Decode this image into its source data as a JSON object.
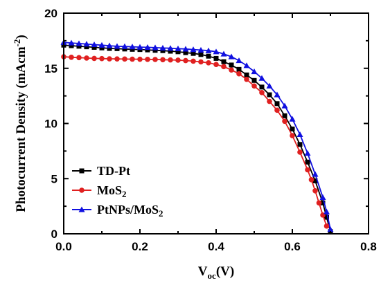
{
  "chart_data": {
    "type": "line",
    "xlabel": {
      "main": "V",
      "sub": "oc",
      "tail": "(V)"
    },
    "ylabel": {
      "main": "Photocurrent Density (mAcm",
      "sup": "-2",
      "tail": ")"
    },
    "xlim": [
      0,
      0.8
    ],
    "ylim": [
      0,
      20
    ],
    "xticks": [
      "0.0",
      "0.2",
      "0.4",
      "0.6",
      "0.8"
    ],
    "yticks": [
      "0",
      "5",
      "10",
      "15",
      "20"
    ],
    "xtick_values": [
      0,
      0.2,
      0.4,
      0.6,
      0.8
    ],
    "ytick_values": [
      0,
      5,
      10,
      15,
      20
    ],
    "grid": false,
    "legend": {
      "placement": "bottom-left"
    },
    "series": [
      {
        "name": "TD-Pt",
        "legend": {
          "main": "TD-Pt"
        },
        "color": "#000000",
        "marker": "square",
        "points": [
          [
            0.0,
            17.1
          ],
          [
            0.02,
            17.05
          ],
          [
            0.04,
            17.0
          ],
          [
            0.06,
            16.95
          ],
          [
            0.08,
            16.9
          ],
          [
            0.1,
            16.85
          ],
          [
            0.12,
            16.8
          ],
          [
            0.14,
            16.78
          ],
          [
            0.16,
            16.75
          ],
          [
            0.18,
            16.72
          ],
          [
            0.2,
            16.7
          ],
          [
            0.22,
            16.67
          ],
          [
            0.24,
            16.63
          ],
          [
            0.26,
            16.6
          ],
          [
            0.28,
            16.55
          ],
          [
            0.3,
            16.5
          ],
          [
            0.32,
            16.42
          ],
          [
            0.34,
            16.35
          ],
          [
            0.36,
            16.25
          ],
          [
            0.38,
            16.1
          ],
          [
            0.4,
            15.9
          ],
          [
            0.42,
            15.6
          ],
          [
            0.44,
            15.3
          ],
          [
            0.46,
            14.9
          ],
          [
            0.48,
            14.4
          ],
          [
            0.5,
            13.9
          ],
          [
            0.52,
            13.3
          ],
          [
            0.54,
            12.6
          ],
          [
            0.56,
            11.8
          ],
          [
            0.58,
            10.7
          ],
          [
            0.6,
            9.5
          ],
          [
            0.62,
            8.1
          ],
          [
            0.64,
            6.5
          ],
          [
            0.66,
            4.8
          ],
          [
            0.68,
            2.8
          ],
          [
            0.69,
            1.5
          ],
          [
            0.7,
            0.2
          ]
        ]
      },
      {
        "name": "MoS2",
        "legend": {
          "main": "MoS",
          "sub": "2"
        },
        "color": "#e02020",
        "marker": "circle",
        "points": [
          [
            0.0,
            16.05
          ],
          [
            0.02,
            16.0
          ],
          [
            0.04,
            15.97
          ],
          [
            0.06,
            15.93
          ],
          [
            0.08,
            15.9
          ],
          [
            0.1,
            15.88
          ],
          [
            0.12,
            15.86
          ],
          [
            0.14,
            15.85
          ],
          [
            0.16,
            15.84
          ],
          [
            0.18,
            15.83
          ],
          [
            0.2,
            15.82
          ],
          [
            0.22,
            15.81
          ],
          [
            0.24,
            15.8
          ],
          [
            0.26,
            15.78
          ],
          [
            0.28,
            15.76
          ],
          [
            0.3,
            15.74
          ],
          [
            0.32,
            15.7
          ],
          [
            0.34,
            15.65
          ],
          [
            0.36,
            15.58
          ],
          [
            0.38,
            15.5
          ],
          [
            0.4,
            15.35
          ],
          [
            0.42,
            15.15
          ],
          [
            0.44,
            14.85
          ],
          [
            0.46,
            14.5
          ],
          [
            0.48,
            14.0
          ],
          [
            0.5,
            13.4
          ],
          [
            0.52,
            12.8
          ],
          [
            0.54,
            12.0
          ],
          [
            0.56,
            11.2
          ],
          [
            0.58,
            10.2
          ],
          [
            0.6,
            8.9
          ],
          [
            0.62,
            7.4
          ],
          [
            0.64,
            5.8
          ],
          [
            0.65,
            4.9
          ],
          [
            0.66,
            3.9
          ],
          [
            0.67,
            2.8
          ],
          [
            0.68,
            1.7
          ],
          [
            0.69,
            0.7
          ]
        ]
      },
      {
        "name": "PtNPs/MoS2",
        "legend": {
          "main": "PtNPs/MoS",
          "sub": "2"
        },
        "color": "#1010e0",
        "marker": "triangle",
        "points": [
          [
            0.0,
            17.35
          ],
          [
            0.02,
            17.3
          ],
          [
            0.04,
            17.25
          ],
          [
            0.06,
            17.2
          ],
          [
            0.08,
            17.15
          ],
          [
            0.1,
            17.1
          ],
          [
            0.12,
            17.05
          ],
          [
            0.14,
            17.0
          ],
          [
            0.16,
            16.98
          ],
          [
            0.18,
            16.95
          ],
          [
            0.2,
            16.92
          ],
          [
            0.22,
            16.9
          ],
          [
            0.24,
            16.87
          ],
          [
            0.26,
            16.84
          ],
          [
            0.28,
            16.82
          ],
          [
            0.3,
            16.78
          ],
          [
            0.32,
            16.75
          ],
          [
            0.34,
            16.7
          ],
          [
            0.36,
            16.65
          ],
          [
            0.38,
            16.6
          ],
          [
            0.4,
            16.5
          ],
          [
            0.42,
            16.3
          ],
          [
            0.44,
            16.05
          ],
          [
            0.46,
            15.7
          ],
          [
            0.48,
            15.25
          ],
          [
            0.5,
            14.7
          ],
          [
            0.52,
            14.1
          ],
          [
            0.54,
            13.4
          ],
          [
            0.56,
            12.6
          ],
          [
            0.58,
            11.6
          ],
          [
            0.6,
            10.4
          ],
          [
            0.62,
            9.0
          ],
          [
            0.64,
            7.3
          ],
          [
            0.66,
            5.4
          ],
          [
            0.68,
            3.3
          ],
          [
            0.69,
            2.0
          ],
          [
            0.7,
            0.4
          ]
        ]
      }
    ]
  }
}
